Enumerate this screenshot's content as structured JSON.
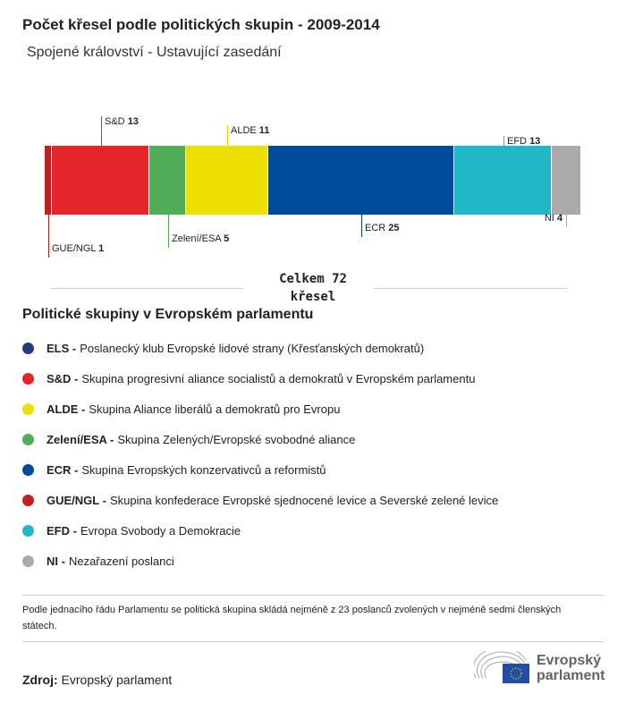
{
  "header": {
    "title": "Počet křesel podle politických skupin - 2009-2014",
    "subtitle": "Spojené království - Ustavující zasedání"
  },
  "chart_data": {
    "type": "bar",
    "orientation": "horizontal-stacked",
    "categories": [
      "GUE/NGL",
      "S&D",
      "Zelení/ESA",
      "ALDE",
      "ECR",
      "EFD",
      "NI"
    ],
    "values": [
      1,
      13,
      5,
      11,
      25,
      13,
      4
    ],
    "colors": [
      "#c21e24",
      "#e4252a",
      "#52ad57",
      "#ede000",
      "#004a9c",
      "#21b8c5",
      "#aaaaaa"
    ],
    "total_label": "Celkem 72 křesel"
  },
  "legend": {
    "title": "Politické skupiny v Evropském parlamentu",
    "items": [
      {
        "abbr": "ELS -",
        "text": "Poslanecký klub Evropské lidové strany (Křesťanských demokratů)",
        "color": "#263a7e"
      },
      {
        "abbr": "S&D -",
        "text": "Skupina progresivní aliance socialistů a demokratů v Evropském parlamentu",
        "color": "#e4252a"
      },
      {
        "abbr": "ALDE -",
        "text": "Skupina Aliance liberálů a demokratů pro Evropu",
        "color": "#ede000"
      },
      {
        "abbr": "Zelení/ESA -",
        "text": "Skupina Zelených/Evropské svobodné aliance",
        "color": "#52ad57"
      },
      {
        "abbr": "ECR -",
        "text": "Skupina Evropských konzervativců a reformistů",
        "color": "#004a9c"
      },
      {
        "abbr": "GUE/NGL -",
        "text": "Skupina konfederace Evropské sjednocené levice a Severské zelené levice",
        "color": "#c21e24"
      },
      {
        "abbr": "EFD -",
        "text": "Evropa Svobody a Demokracie",
        "color": "#21b8c5"
      },
      {
        "abbr": "NI -",
        "text": "Nezařazení poslanci",
        "color": "#aaaaaa"
      }
    ]
  },
  "note": "Podle jednacího řádu Parlamentu se politická skupina skládá nejméně z 23 poslanců zvolených v nejméně sedmi členských státech.",
  "source": {
    "label": "Zdroj:",
    "value": "Evropský parlament"
  },
  "logo": {
    "line1": "Evropský",
    "line2": "parlament"
  }
}
